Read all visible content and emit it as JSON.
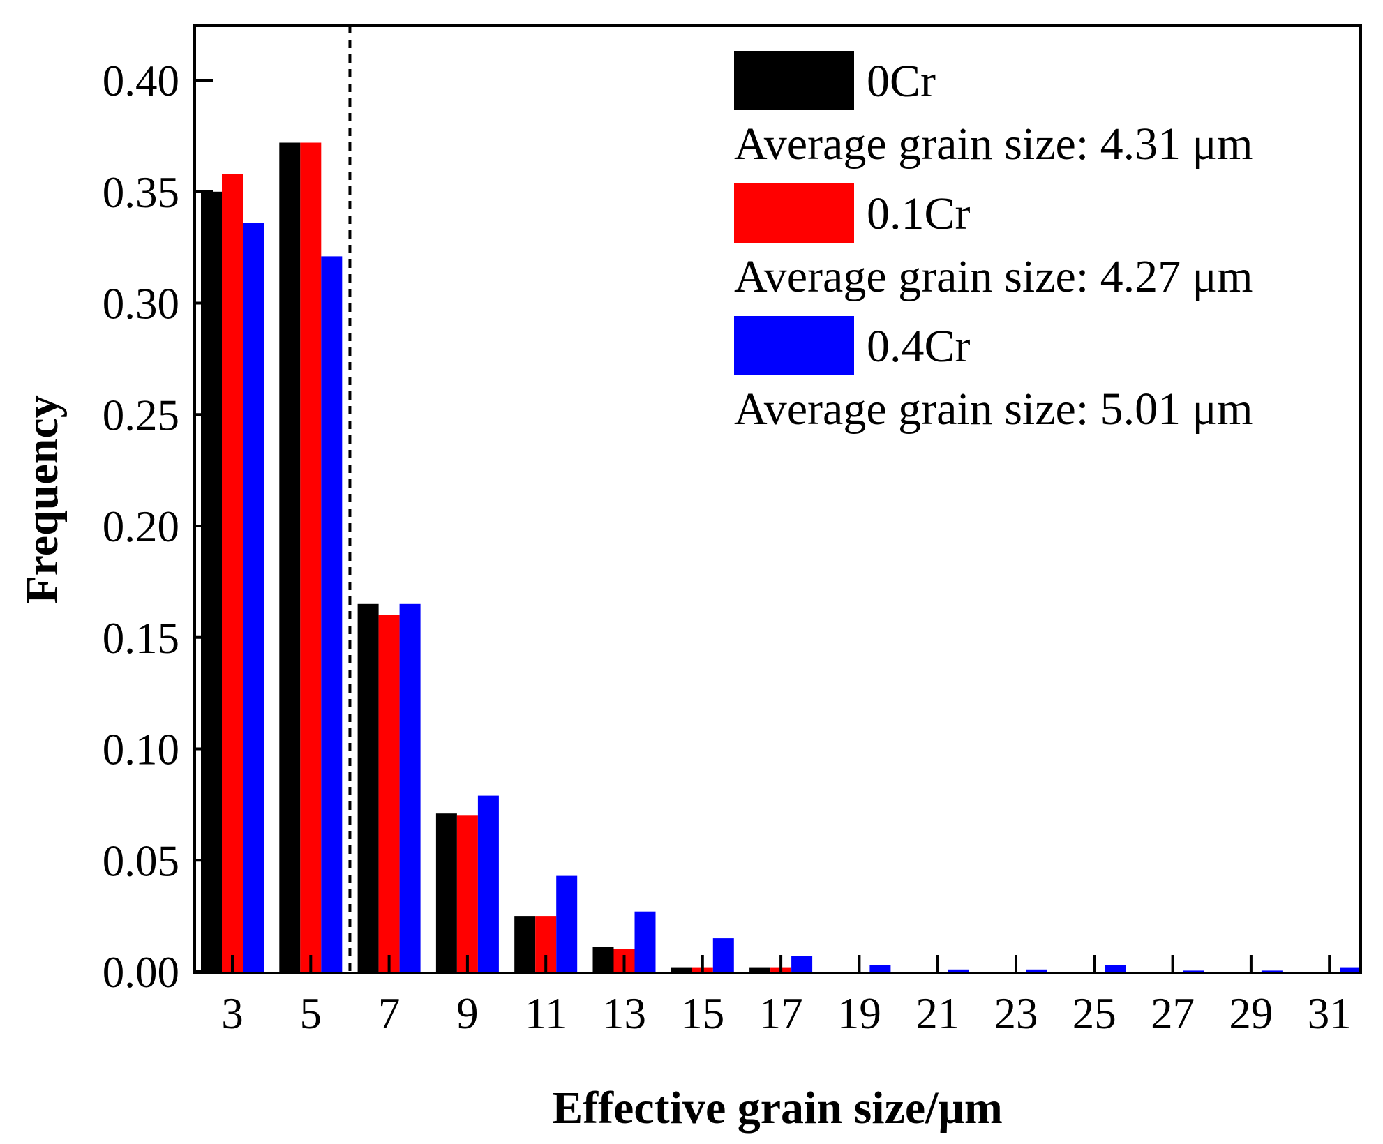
{
  "chart_data": {
    "type": "bar",
    "title": "",
    "xlabel": "Effective grain size/μm",
    "ylabel": "Frequency",
    "ylim": [
      0,
      0.42
    ],
    "yticks": [
      "0.00",
      "0.05",
      "0.10",
      "0.15",
      "0.20",
      "0.25",
      "0.30",
      "0.35",
      "0.40"
    ],
    "categories": [
      "3",
      "5",
      "7",
      "9",
      "11",
      "13",
      "15",
      "17",
      "19",
      "21",
      "23",
      "25",
      "27",
      "29",
      "31"
    ],
    "reference_line": {
      "x_between_categories": [
        "5",
        "7"
      ],
      "style": "dashed"
    },
    "series": [
      {
        "name": "0Cr",
        "color": "#000000",
        "average_label": "Average grain size: 4.31 μm",
        "values": [
          0.35,
          0.372,
          0.165,
          0.071,
          0.025,
          0.011,
          0.002,
          0.002,
          0,
          0,
          0,
          0,
          0,
          0,
          0
        ]
      },
      {
        "name": "0.1Cr",
        "color": "#ff0000",
        "average_label": "Average grain size: 4.27 μm",
        "values": [
          0.358,
          0.372,
          0.16,
          0.07,
          0.025,
          0.01,
          0.002,
          0.002,
          0,
          0,
          0,
          0,
          0,
          0,
          0
        ]
      },
      {
        "name": "0.4Cr",
        "color": "#0000ff",
        "average_label": "Average grain size: 5.01 μm",
        "values": [
          0.336,
          0.321,
          0.165,
          0.079,
          0.043,
          0.027,
          0.015,
          0.007,
          0.003,
          0.001,
          0.001,
          0.003,
          0.0005,
          0.0005,
          0.002
        ]
      }
    ],
    "legend_position": "top-right"
  }
}
